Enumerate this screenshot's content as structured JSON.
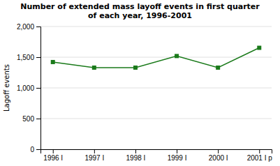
{
  "chart_data": {
    "type": "line",
    "title": "Number of extended mass layoff events in first quarter\nof each year, 1996-2001",
    "categories": [
      "1996 I",
      "1997 I",
      "1998 I",
      "1999 I",
      "2000 I",
      "2001 I p"
    ],
    "values": [
      1421,
      1330,
      1330,
      1519,
      1330,
      1653
    ],
    "ylabel": "Lagoff events",
    "color": "#1a7a1a",
    "marker": "square",
    "ylim": [
      0,
      2000
    ],
    "yticks": [
      0,
      500,
      {
        "value": 1000,
        "label": "1,000"
      },
      {
        "value": 1500,
        "label": "1,500"
      },
      {
        "value": 2000,
        "label": "2,000"
      }
    ],
    "grid": true
  }
}
